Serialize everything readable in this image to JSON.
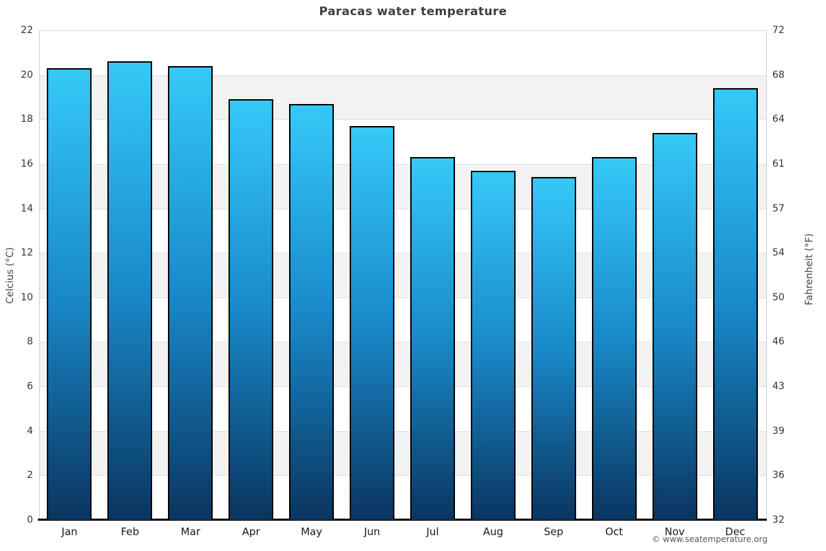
{
  "chart_data": {
    "type": "bar",
    "title": "Paracas water temperature",
    "ylabel_left": "Celcius (°C)",
    "ylabel_right": "Fahrenheit (°F)",
    "categories": [
      "Jan",
      "Feb",
      "Mar",
      "Apr",
      "May",
      "Jun",
      "Jul",
      "Aug",
      "Sep",
      "Oct",
      "Nov",
      "Dec"
    ],
    "values": [
      20.3,
      20.6,
      20.4,
      18.9,
      18.7,
      17.7,
      16.3,
      15.7,
      15.4,
      16.3,
      17.4,
      19.4
    ],
    "ylim": [
      0,
      22
    ],
    "yticks_celsius": [
      22,
      20,
      18,
      16,
      14,
      12,
      10,
      8,
      6,
      4,
      2,
      0
    ],
    "yticks_fahrenheit": [
      72,
      68,
      64,
      61,
      57,
      54,
      50,
      46,
      43,
      39,
      36,
      32
    ],
    "legend": "none",
    "grid": "alternating horizontal bands every 2°C",
    "colors": {
      "bar_gradient_top": "#35c9f8",
      "bar_gradient_mid": "#1989c9",
      "bar_gradient_bottom": "#0a3560",
      "bar_border": "#000000",
      "band_fill": "#f2f2f2",
      "gridline": "#e0e0e0",
      "axis_line": "#000000"
    }
  },
  "footer": {
    "credit": "© www.seatemperature.org"
  }
}
